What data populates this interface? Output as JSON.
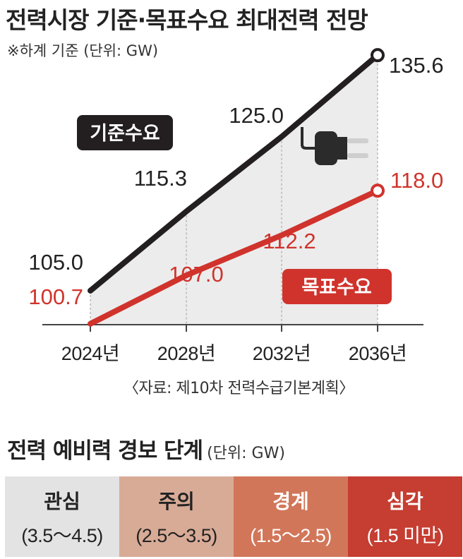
{
  "title": "전력시장 기준·목표수요 최대전력 전망",
  "note": "※하계 기준  (단위: GW)",
  "source": "〈자료: 제10차 전력수급기본계획〉",
  "colors": {
    "baseline": "#231f20",
    "target": "#d0332c",
    "area": "#ececec"
  },
  "chart_data": {
    "type": "line",
    "categories": [
      "2024년",
      "2028년",
      "2032년",
      "2036년"
    ],
    "series": [
      {
        "name": "기준수요",
        "values": [
          105.0,
          115.3,
          125.0,
          135.6
        ],
        "labels": [
          "105.0",
          "115.3",
          "125.0",
          "135.6"
        ]
      },
      {
        "name": "목표수요",
        "values": [
          100.7,
          107.0,
          112.2,
          118.0
        ],
        "labels": [
          "100.7",
          "107.0",
          "112.2",
          "118.0"
        ]
      }
    ],
    "ylim": [
      96,
      138
    ],
    "grid": false,
    "icon": "plug-icon"
  },
  "levels": {
    "title": "전력 예비력 경보 단계",
    "unit": "(단위: GW)",
    "items": [
      {
        "name": "관심",
        "range": "(3.5～4.5)"
      },
      {
        "name": "주의",
        "range": "(2.5～3.5)"
      },
      {
        "name": "경계",
        "range": "(1.5～2.5)"
      },
      {
        "name": "심각",
        "range": "(1.5 미만)"
      }
    ]
  }
}
